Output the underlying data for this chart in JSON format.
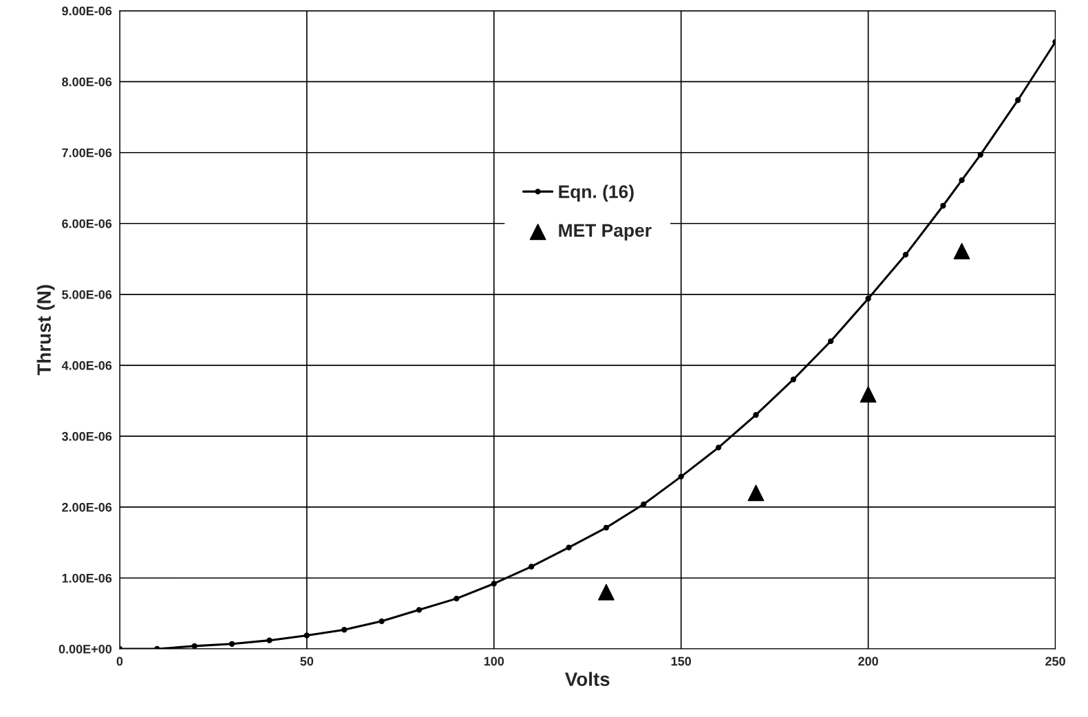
{
  "chart_data": {
    "type": "line",
    "xlabel": "Volts",
    "ylabel": "Thrust (N)",
    "xlim": [
      0,
      250
    ],
    "xticks": [
      0,
      50,
      100,
      150,
      200,
      250
    ],
    "ylim": [
      0,
      9e-06
    ],
    "yticks": [
      {
        "value": 0,
        "label": "0.00E+00"
      },
      {
        "value": 1e-06,
        "label": "1.00E-06"
      },
      {
        "value": 2e-06,
        "label": "2.00E-06"
      },
      {
        "value": 3e-06,
        "label": "3.00E-06"
      },
      {
        "value": 4e-06,
        "label": "4.00E-06"
      },
      {
        "value": 5e-06,
        "label": "5.00E-06"
      },
      {
        "value": 6e-06,
        "label": "6.00E-06"
      },
      {
        "value": 7e-06,
        "label": "7.00E-06"
      },
      {
        "value": 8e-06,
        "label": "8.00E-06"
      },
      {
        "value": 9e-06,
        "label": "9.00E-06"
      }
    ],
    "grid": true,
    "legend": "top",
    "series": [
      {
        "name": "Eqn. (16)",
        "marker": "circle",
        "color": "#000000",
        "x": [
          0,
          10,
          20,
          30,
          40,
          50,
          60,
          70,
          80,
          90,
          100,
          110,
          120,
          130,
          140,
          150,
          160,
          170,
          180,
          190,
          200,
          210,
          220,
          225,
          230,
          240,
          250
        ],
        "values": [
          0,
          0,
          4e-08,
          7e-08,
          1.2e-07,
          1.9e-07,
          2.7e-07,
          3.9e-07,
          5.5e-07,
          7.1e-07,
          9.2e-07,
          1.16e-06,
          1.43e-06,
          1.71e-06,
          2.04e-06,
          2.43e-06,
          2.84e-06,
          3.3e-06,
          3.8e-06,
          4.34e-06,
          4.94e-06,
          5.56e-06,
          6.25e-06,
          6.61e-06,
          6.97e-06,
          7.74e-06,
          8.56e-06
        ]
      },
      {
        "name": "MET Paper",
        "type": "scatter",
        "marker": "triangle",
        "color": "#000000",
        "x": [
          130,
          170,
          200,
          225
        ],
        "values": [
          8e-07,
          2.2e-06,
          3.59e-06,
          5.61e-06
        ]
      }
    ]
  }
}
